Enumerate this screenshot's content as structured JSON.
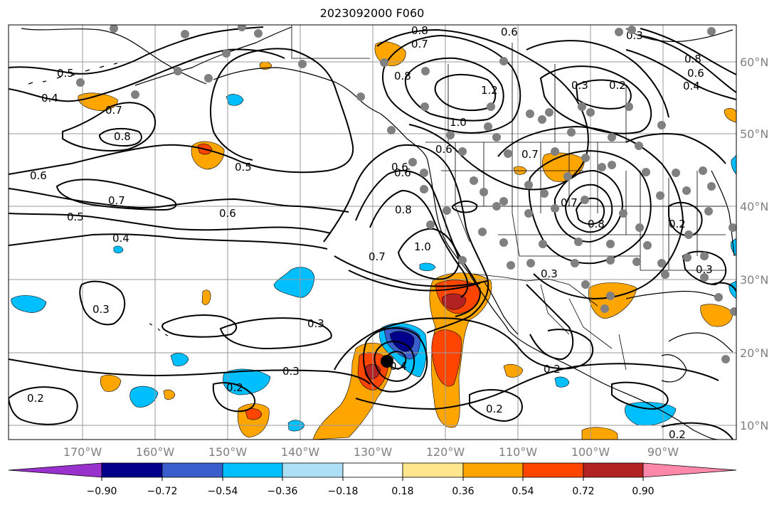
{
  "title": "2023092000 F060",
  "latitude_labels": [
    "60°N",
    "50°N",
    "40°N",
    "30°N",
    "20°N",
    "10°N"
  ],
  "longitude_labels": [
    "170°W",
    "160°W",
    "150°W",
    "140°W",
    "130°W",
    "120°W",
    "110°W",
    "100°W",
    "90°W"
  ],
  "contour_labels": [
    "0.5",
    "0.4",
    "0.7",
    "0.8",
    "0.6",
    "0.5",
    "0.6",
    "0.7",
    "0.5",
    "0.6",
    "0.4",
    "0.3",
    "0.3",
    "0.3",
    "0.2",
    "0.2",
    "0.2",
    "0.8",
    "0.7",
    "0.6",
    "0.8",
    "1.2",
    "1.0",
    "0.6",
    "0.7",
    "0.6",
    "0.8",
    "1.0",
    "0.7",
    "0.4",
    "0.2",
    "0.2",
    "0.3",
    "0.2",
    "0.8",
    "0.6",
    "0.4",
    "0.3",
    "0.2",
    "0.3",
    "0.7",
    "0.8",
    "0.3"
  ],
  "colorbar": {
    "ticks": [
      "−0.90",
      "−0.72",
      "−0.54",
      "−0.36",
      "−0.18",
      "0.18",
      "0.36",
      "0.54",
      "0.72",
      "0.90"
    ],
    "colors": [
      "#9932CC",
      "#00008B",
      "#3A5FCD",
      "#00BFFF",
      "#ADDFF5",
      "#FFFFFF",
      "#FFE68C",
      "#FFA500",
      "#FF4500",
      "#B22222",
      "#FF88AA"
    ]
  },
  "colors": {
    "land_outline": "#000000",
    "contour": "#000000",
    "grid": "#9a9a9a",
    "station_dot": "#808080",
    "marker": "#000000"
  },
  "icons": [
    "storm-center-marker",
    "station-dot"
  ]
}
